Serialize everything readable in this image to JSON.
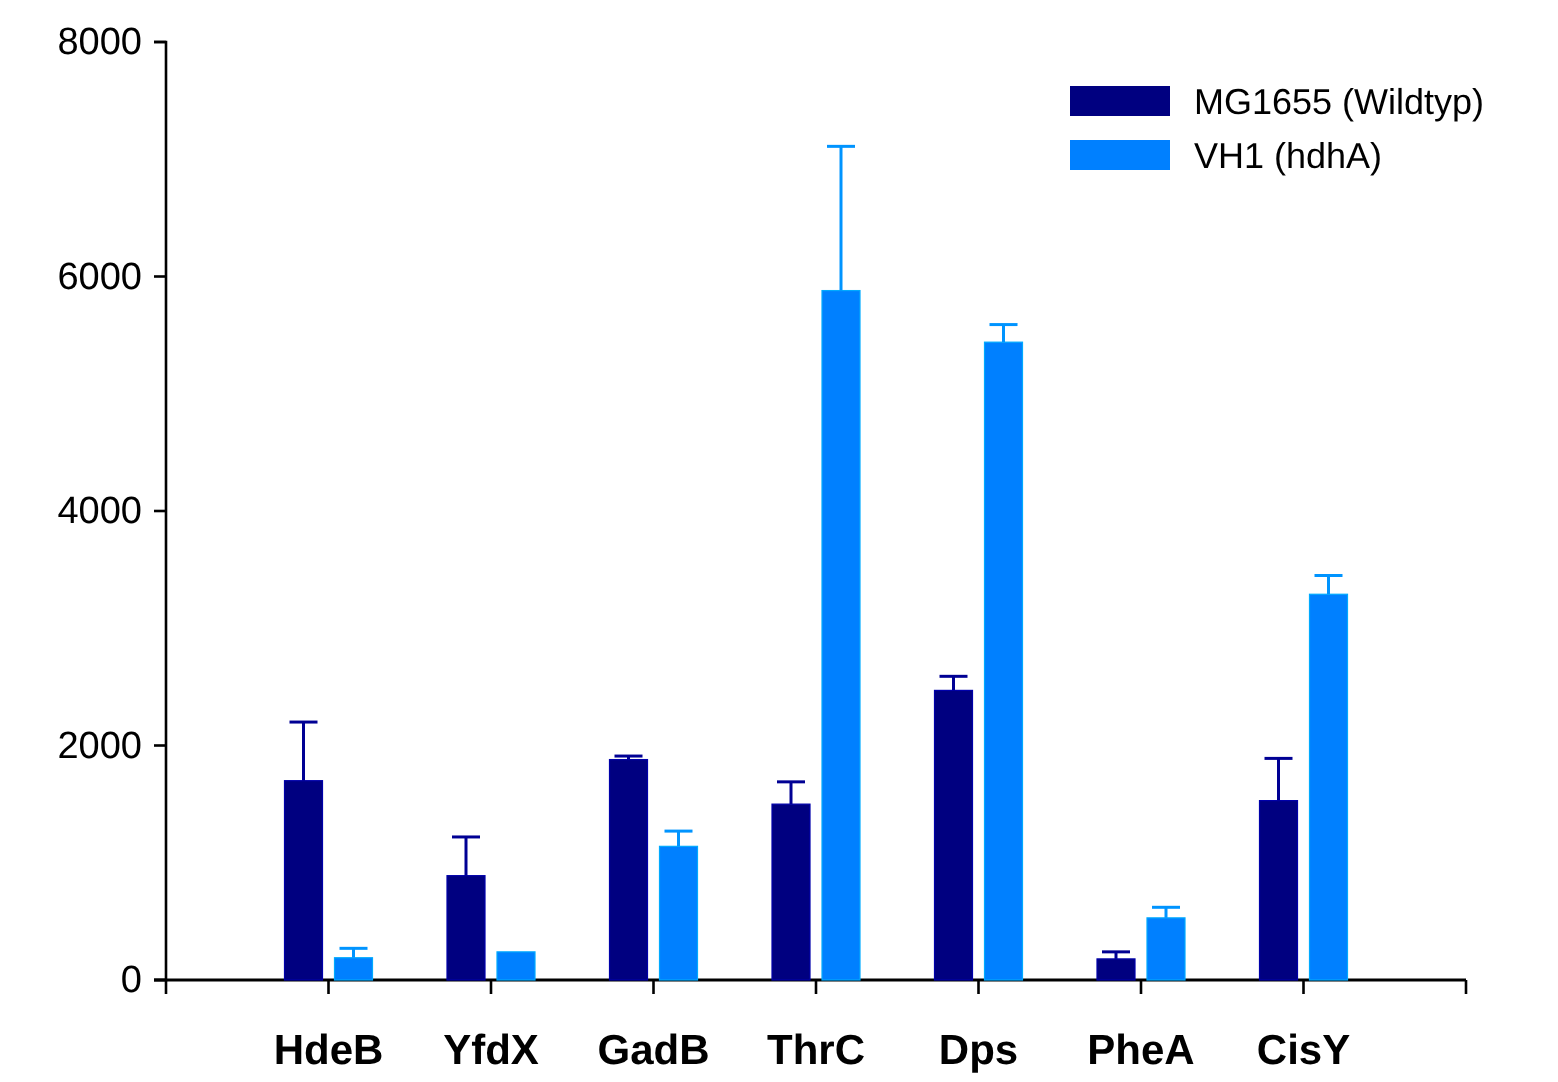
{
  "chart_data": {
    "type": "bar",
    "categories": [
      "HdeB",
      "YfdX",
      "GadB",
      "ThrC",
      "Dps",
      "PheA",
      "CisY"
    ],
    "series": [
      {
        "name": "MG1655 (Wildtyp)",
        "color": "#000080",
        "values": [
          1700,
          890,
          1880,
          1500,
          2470,
          180,
          1530
        ],
        "errors": [
          [
            1700,
            2200
          ],
          [
            890,
            1220
          ],
          [
            1880,
            1910
          ],
          [
            1500,
            1690
          ],
          [
            2470,
            2590
          ],
          [
            180,
            240
          ],
          [
            1530,
            1890
          ]
        ]
      },
      {
        "name": "VH1 (hdhA)",
        "color": "#0080ff",
        "values": [
          190,
          240,
          1140,
          5880,
          5440,
          530,
          3290
        ],
        "errors": [
          [
            190,
            270
          ],
          null,
          [
            1140,
            1270
          ],
          [
            5880,
            7110
          ],
          [
            5440,
            5590
          ],
          [
            530,
            620
          ],
          [
            3290,
            3450
          ]
        ]
      }
    ],
    "ylim": [
      0,
      8000
    ],
    "yticks": [
      0,
      2000,
      4000,
      6000,
      8000
    ],
    "grid": false,
    "legend": "top right"
  }
}
